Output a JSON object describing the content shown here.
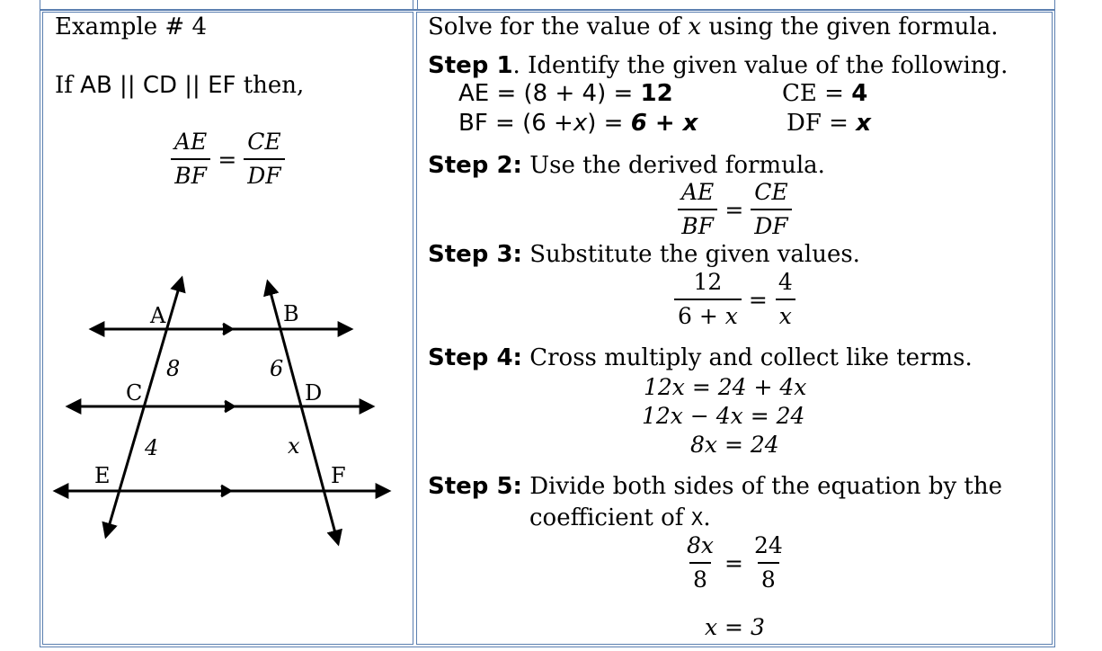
{
  "left": {
    "heading": "Example # 4",
    "if_word": "If",
    "parallel": "AB || CD || EF",
    "then": "then,",
    "formula": {
      "n1": "AE",
      "d1": "BF",
      "n2": "CE",
      "d2": "DF"
    },
    "diagram": {
      "labels": {
        "A": "A",
        "B": "B",
        "C": "C",
        "D": "D",
        "E": "E",
        "F": "F"
      },
      "seg_ac": "8",
      "seg_bd": "6",
      "seg_ce": "4",
      "seg_df": "x"
    }
  },
  "right": {
    "intro_pre": "Solve for the value of",
    "intro_var": "x",
    "intro_post": "using the given formula.",
    "step1_label": "Step 1",
    "step1_text": ". Identify the given value of the following.",
    "ae_pre": "AE = (8 + 4) =",
    "ae_val": "12",
    "ce_pre": "CE =",
    "ce_val": "4",
    "bf_pre": "BF = (6 +",
    "bf_var": "x",
    "bf_mid": ") =",
    "bf_val": "6 + x",
    "df_pre": "DF =",
    "df_val": "x",
    "step2_label": "Step 2:",
    "step2_text": "Use the derived formula.",
    "step2_formula": {
      "n1": "AE",
      "d1": "BF",
      "n2": "CE",
      "d2": "DF"
    },
    "step3_label": "Step 3:",
    "step3_text": "Substitute the given values.",
    "step3_formula": {
      "n1": "12",
      "d1_a": "6 + ",
      "d1_b": "x",
      "n2": "4",
      "d2": "x"
    },
    "step4_label": "Step 4:",
    "step4_text": "Cross multiply and collect like terms.",
    "step4_lines": [
      "12x = 24 + 4x",
      "12x − 4x = 24",
      "8x = 24"
    ],
    "step5_label": "Step 5:",
    "step5_text": "Divide both sides of the equation by the",
    "step5_text2": "coefficient of",
    "step5_var": "X",
    "step5_period": ".",
    "step5_formula": {
      "n1": "8x",
      "d1": "8",
      "n2": "24",
      "d2": "8"
    },
    "answer": "x = 3",
    "eq": "="
  }
}
